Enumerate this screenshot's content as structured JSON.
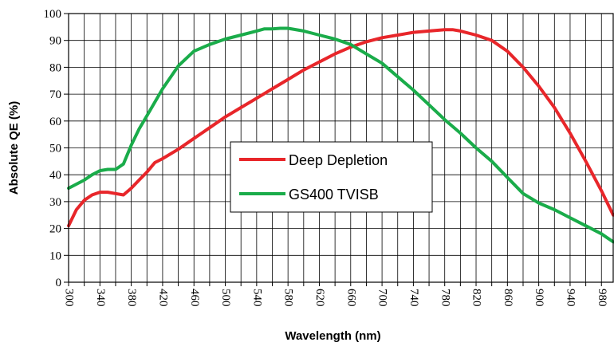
{
  "chart_data": {
    "type": "line",
    "xlabel": "Wavelength (nm)",
    "ylabel": "Absolute QE (%)",
    "xlim": [
      300,
      995
    ],
    "ylim": [
      0,
      100
    ],
    "x_ticks": [
      300,
      340,
      380,
      420,
      460,
      500,
      540,
      580,
      620,
      660,
      700,
      740,
      780,
      820,
      860,
      900,
      940,
      980
    ],
    "y_ticks": [
      0,
      10,
      20,
      30,
      40,
      50,
      60,
      70,
      80,
      90,
      100
    ],
    "x_minor_step": 20,
    "grid": true,
    "legend_placement": "center",
    "series": [
      {
        "name": "Deep Depletion",
        "color": "#e8262a",
        "x": [
          300,
          305,
          310,
          320,
          330,
          340,
          350,
          360,
          370,
          380,
          390,
          400,
          410,
          420,
          440,
          460,
          480,
          500,
          520,
          540,
          560,
          580,
          600,
          620,
          640,
          660,
          680,
          700,
          720,
          740,
          760,
          780,
          790,
          800,
          820,
          840,
          860,
          880,
          900,
          920,
          940,
          960,
          980,
          995
        ],
        "y": [
          21,
          24,
          27,
          30.5,
          32.5,
          33.5,
          33.5,
          33,
          32.5,
          35,
          38,
          41,
          44.5,
          46,
          49.5,
          53.5,
          57.5,
          61.5,
          65,
          68.5,
          72,
          75.5,
          79,
          82,
          85,
          87.5,
          89.5,
          91,
          92,
          93,
          93.5,
          94,
          94,
          93.5,
          92,
          90,
          86,
          80,
          73,
          65,
          55.5,
          45,
          34,
          25
        ]
      },
      {
        "name": "GS400 TVISB",
        "color": "#1aac4a",
        "x": [
          300,
          310,
          320,
          330,
          340,
          350,
          360,
          370,
          380,
          390,
          400,
          420,
          440,
          460,
          480,
          500,
          520,
          540,
          550,
          560,
          570,
          580,
          600,
          620,
          640,
          660,
          680,
          700,
          720,
          740,
          760,
          780,
          800,
          820,
          840,
          860,
          880,
          900,
          920,
          940,
          960,
          980,
          995
        ],
        "y": [
          35,
          36.5,
          38,
          40,
          41.5,
          42,
          42,
          44,
          51,
          57,
          62,
          72,
          80.5,
          86,
          88.5,
          90.5,
          92,
          93.5,
          94.3,
          94.3,
          94.5,
          94.5,
          93.5,
          92,
          90.5,
          88.5,
          85,
          81.5,
          76.5,
          71.5,
          66,
          60.5,
          55.5,
          50,
          45,
          39,
          33,
          29.5,
          27,
          24,
          21,
          18,
          15
        ]
      }
    ]
  }
}
